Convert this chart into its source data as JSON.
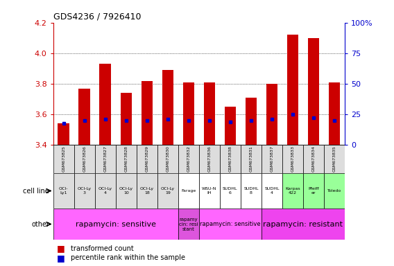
{
  "title": "GDS4236 / 7926410",
  "samples": [
    "GSM673825",
    "GSM673826",
    "GSM673827",
    "GSM673828",
    "GSM673829",
    "GSM673830",
    "GSM673832",
    "GSM673836",
    "GSM673838",
    "GSM673831",
    "GSM673837",
    "GSM673833",
    "GSM673834",
    "GSM673835"
  ],
  "bar_values": [
    3.54,
    3.77,
    3.93,
    3.74,
    3.82,
    3.89,
    3.81,
    3.81,
    3.65,
    3.71,
    3.8,
    4.12,
    4.1,
    3.81
  ],
  "dot_values": [
    3.54,
    3.56,
    3.57,
    3.56,
    3.56,
    3.57,
    3.56,
    3.56,
    3.55,
    3.56,
    3.57,
    3.6,
    3.58,
    3.56
  ],
  "ylim": [
    3.4,
    4.2
  ],
  "y2lim": [
    0,
    100
  ],
  "yticks": [
    3.4,
    3.6,
    3.8,
    4.0,
    4.2
  ],
  "y2ticks": [
    0,
    25,
    50,
    75,
    100
  ],
  "bar_color": "#cc0000",
  "dot_color": "#0000cc",
  "cell_line_labels": [
    "OCI-\nLy1",
    "OCI-Ly\n3",
    "OCI-Ly\n4",
    "OCI-Ly\n10",
    "OCI-Ly\n18",
    "OCI-Ly\n19",
    "Farage",
    "WSU-N\nIH",
    "SUDHL\n6",
    "SUDHL\n8",
    "SUDHL\n4",
    "Karpas\n422",
    "Pfeiff\ner",
    "Toledo"
  ],
  "cell_line_colors": [
    "#dddddd",
    "#dddddd",
    "#dddddd",
    "#dddddd",
    "#dddddd",
    "#dddddd",
    "#ffffff",
    "#ffffff",
    "#ffffff",
    "#ffffff",
    "#ffffff",
    "#99ff99",
    "#99ff99",
    "#99ff99"
  ],
  "other_groups": [
    {
      "label": "rapamycin: sensitive",
      "start": 0,
      "end": 6,
      "color": "#ff66ff",
      "fontsize": 8
    },
    {
      "label": "rapamy\ncin: resi\nstant",
      "start": 6,
      "end": 7,
      "color": "#dd55dd",
      "fontsize": 5
    },
    {
      "label": "rapamycin: sensitive",
      "start": 7,
      "end": 10,
      "color": "#ff66ff",
      "fontsize": 6
    },
    {
      "label": "rapamycin: resistant",
      "start": 10,
      "end": 14,
      "color": "#ee44ee",
      "fontsize": 8
    }
  ],
  "xlabel_color": "#cc0000",
  "y2label_color": "#0000cc",
  "background_color": "#ffffff"
}
